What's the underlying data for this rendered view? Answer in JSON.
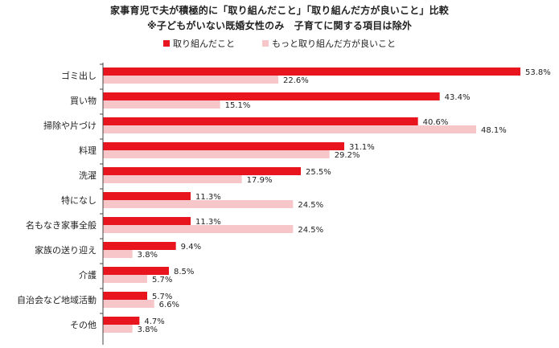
{
  "chart_data": {
    "type": "bar",
    "orientation": "horizontal",
    "title": "家事育児で夫が積極的に「取り組んだこと」「取り組んだ方が良いこと」比較",
    "subtitle": "※子どもがいない既婚女性のみ　子育てに関する項目は除外",
    "categories": [
      "ゴミ出し",
      "買い物",
      "掃除や片づけ",
      "料理",
      "洗濯",
      "特になし",
      "名もなき家事全般",
      "家族の送り迎え",
      "介護",
      "自治会など地域活動",
      "その他"
    ],
    "series": [
      {
        "name": "取り組んだこと",
        "color": "#e8141e",
        "values": [
          53.8,
          43.4,
          40.6,
          31.1,
          25.5,
          11.3,
          11.3,
          9.4,
          8.5,
          5.7,
          4.7
        ],
        "labels": [
          "53.8%",
          "43.4%",
          "40.6%",
          "31.1%",
          "25.5%",
          "11.3%",
          "11.3%",
          "9.4%",
          "8.5%",
          "5.7%",
          "4.7%"
        ]
      },
      {
        "name": "もっと取り組んだ方が良いこと",
        "color": "#f6c6c8",
        "values": [
          22.6,
          15.1,
          48.1,
          29.2,
          17.9,
          24.5,
          24.5,
          3.8,
          5.7,
          6.6,
          3.8
        ],
        "labels": [
          "22.6%",
          "15.1%",
          "48.1%",
          "29.2%",
          "17.9%",
          "24.5%",
          "24.5%",
          "3.8%",
          "5.7%",
          "6.6%",
          "3.8%"
        ]
      }
    ],
    "xlim": [
      0,
      55
    ],
    "grid": false,
    "legend_position": "top"
  }
}
